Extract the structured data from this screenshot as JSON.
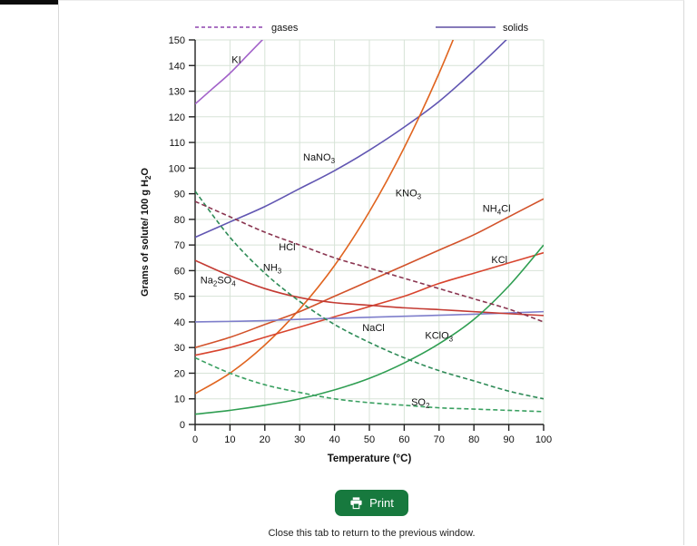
{
  "page": {
    "print_button_label": "Print",
    "close_note": "Close this tab to return to the previous window."
  },
  "chart_data": {
    "type": "line",
    "title": "",
    "xlabel": "Temperature (°C)",
    "ylabel": "Grams of solute/ 100 g H|2|O",
    "xlim": [
      0,
      100
    ],
    "ylim": [
      0,
      150
    ],
    "xticks": [
      0,
      10,
      20,
      30,
      40,
      50,
      60,
      70,
      80,
      90,
      100
    ],
    "yticks": [
      0,
      10,
      20,
      30,
      40,
      50,
      60,
      70,
      80,
      90,
      100,
      110,
      120,
      130,
      140,
      150
    ],
    "grid": true,
    "grid_color": "#d7e3d7",
    "legend": [
      {
        "label": "gases",
        "style": "dashed",
        "color": "#8e44ad"
      },
      {
        "label": "solids",
        "style": "solid",
        "color": "#5e4fa2"
      }
    ],
    "series": [
      {
        "name": "KI",
        "label": "KI",
        "color": "#a262c9",
        "gas": false,
        "label_pos": [
          10.5,
          141
        ],
        "x": [
          0,
          5,
          10,
          15,
          20,
          25
        ],
        "y": [
          125,
          131,
          137,
          144,
          151,
          158
        ]
      },
      {
        "name": "NaNO3",
        "label": "NaNO|3",
        "color": "#6156b2",
        "gas": false,
        "label_pos": [
          31,
          103
        ],
        "x": [
          0,
          10,
          20,
          30,
          40,
          50,
          60,
          70,
          80,
          90,
          100
        ],
        "y": [
          73,
          79,
          85,
          92,
          99,
          107,
          116,
          126,
          138,
          151,
          165
        ]
      },
      {
        "name": "KNO3",
        "label": "KNO|3",
        "color": "#e0641f",
        "gas": false,
        "label_pos": [
          57.5,
          89
        ],
        "x": [
          0,
          10,
          20,
          30,
          40,
          50,
          60,
          70,
          80
        ],
        "y": [
          12,
          20,
          31,
          45,
          62,
          83,
          108,
          137,
          170
        ]
      },
      {
        "name": "NH4Cl",
        "label": "NH|4|Cl",
        "color": "#d2522a",
        "gas": false,
        "label_pos": [
          82.5,
          83
        ],
        "x": [
          0,
          10,
          20,
          30,
          40,
          50,
          60,
          70,
          80,
          90,
          100
        ],
        "y": [
          30,
          34,
          39,
          44,
          50,
          56,
          62,
          68,
          74,
          81,
          88
        ]
      },
      {
        "name": "KCl",
        "label": "KCl",
        "color": "#d8442e",
        "gas": false,
        "label_pos": [
          85,
          63
        ],
        "x": [
          0,
          10,
          20,
          30,
          40,
          50,
          60,
          70,
          80,
          90,
          100
        ],
        "y": [
          27,
          30,
          34,
          38,
          42,
          46,
          50,
          55,
          59,
          63,
          67
        ]
      },
      {
        "name": "NaCl",
        "label": "NaCl",
        "color": "#7e7ecb",
        "gas": false,
        "label_pos": [
          48,
          36.5
        ],
        "x": [
          0,
          10,
          20,
          30,
          40,
          50,
          60,
          70,
          80,
          90,
          100
        ],
        "y": [
          40,
          40.2,
          40.5,
          41,
          41.4,
          41.8,
          42.2,
          42.6,
          43,
          43.5,
          44
        ]
      },
      {
        "name": "Na2SO4",
        "label": "Na|2|SO|4",
        "color": "#c43b33",
        "gas": false,
        "label_pos": [
          1.5,
          55
        ],
        "x": [
          0,
          10,
          20,
          30,
          40,
          50,
          60,
          70,
          80,
          90,
          100
        ],
        "y": [
          64,
          58,
          53,
          49.5,
          47.5,
          46.5,
          45.5,
          44.8,
          44,
          43.2,
          42.5
        ]
      },
      {
        "name": "KClO3",
        "label": "KClO|3",
        "color": "#2f9e52",
        "gas": false,
        "label_pos": [
          66,
          33.5
        ],
        "x": [
          0,
          10,
          20,
          30,
          40,
          50,
          60,
          70,
          80,
          90,
          100
        ],
        "y": [
          4,
          5.5,
          7.5,
          10,
          13.5,
          18,
          24,
          31.5,
          41,
          54,
          70
        ]
      },
      {
        "name": "NH3",
        "label": "NH|3",
        "color": "#2e8b57",
        "gas": true,
        "label_pos": [
          19.5,
          60
        ],
        "x": [
          0,
          10,
          20,
          30,
          40,
          50,
          60,
          70,
          80,
          90,
          100
        ],
        "y": [
          91,
          73,
          59,
          48,
          39,
          32,
          26,
          21,
          17,
          13,
          10
        ]
      },
      {
        "name": "HCl",
        "label": "HCl",
        "color": "#8a3550",
        "gas": true,
        "label_pos": [
          24,
          68
        ],
        "x": [
          0,
          10,
          20,
          30,
          40,
          50,
          60,
          70,
          80,
          90,
          100
        ],
        "y": [
          87,
          81,
          75,
          70,
          65,
          61,
          57,
          53,
          49,
          45,
          40
        ]
      },
      {
        "name": "SO2",
        "label": "SO|2",
        "color": "#3aa061",
        "gas": true,
        "label_pos": [
          62,
          7.5
        ],
        "x": [
          0,
          10,
          20,
          30,
          40,
          50,
          60,
          70,
          80,
          90,
          100
        ],
        "y": [
          26,
          20,
          15.5,
          12.5,
          10,
          8.5,
          7.5,
          6.5,
          6,
          5.5,
          5
        ]
      }
    ]
  }
}
